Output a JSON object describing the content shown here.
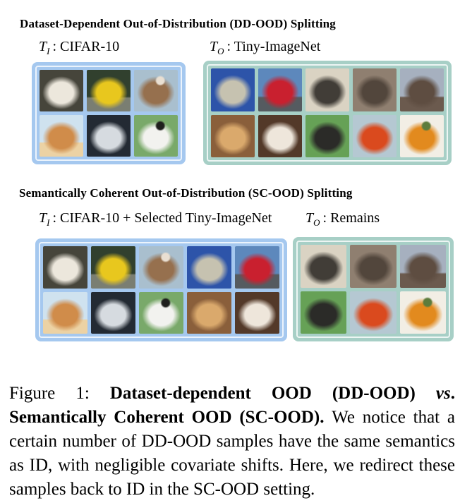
{
  "figure": {
    "colors": {
      "blue_box": "#a5c8ef",
      "green_box": "#a7cfc6",
      "inner_border": "#f2f7fb"
    },
    "sections": [
      {
        "id": "dd-ood",
        "title": "Dataset-Dependent Out-of-Distribution (DD-OOD) Splitting",
        "groups": [
          {
            "label": {
              "symbol": "T",
              "subscript": "I",
              "text": ": CIFAR-10"
            },
            "box_style": "blue",
            "columns": 3,
            "images": [
              "white-cat",
              "yellow-car",
              "brown-white-puppy",
              "orange-kitten",
              "airplane",
              "black-white-dog"
            ]
          },
          {
            "label": {
              "symbol": "T",
              "subscript": "O",
              "text": ": Tiny-ImageNet"
            },
            "box_style": "green",
            "columns": 5,
            "images": [
              "tabby-cat",
              "red-car",
              "high-heel-shoe",
              "bear",
              "bridge",
              "golden-retriever",
              "white-fluffy-dog",
              "boxing-bag",
              "goldfish",
              "orange-pepper"
            ]
          }
        ]
      },
      {
        "id": "sc-ood",
        "title": "Semantically Coherent Out-of-Distribution (SC-OOD) Splitting",
        "groups": [
          {
            "label": {
              "symbol": "T",
              "subscript": "I",
              "text": ": CIFAR-10 + Selected Tiny-ImageNet"
            },
            "box_style": "blue",
            "columns": 5,
            "images": [
              "white-cat",
              "yellow-car",
              "brown-white-puppy",
              "tabby-cat",
              "red-car",
              "orange-kitten",
              "airplane",
              "black-white-dog",
              "golden-retriever",
              "white-fluffy-dog"
            ]
          },
          {
            "label": {
              "symbol": "T",
              "subscript": "O",
              "text": ": Remains"
            },
            "box_style": "green",
            "columns": 3,
            "images": [
              "high-heel-shoe",
              "bear",
              "bridge",
              "boxing-bag",
              "goldfish",
              "orange-pepper"
            ]
          }
        ]
      }
    ],
    "image_palette": {
      "white-cat": {
        "bg": "#46453b",
        "fg": "#ece7dc"
      },
      "yellow-car": {
        "bg": "#31402e",
        "fg": "#e8c71e",
        "base": "#7a7e72"
      },
      "brown-white-puppy": {
        "bg": "#a9bfce",
        "fg": "#96704e",
        "accent": "#e9dfd2"
      },
      "orange-kitten": {
        "bg": "#cfe2ef",
        "fg": "#d08c4a",
        "base": "#ecd2a4"
      },
      "airplane": {
        "bg": "#232a33",
        "fg": "#d6dbe0"
      },
      "black-white-dog": {
        "bg": "#79a96a",
        "fg": "#f2f2ef",
        "accent": "#1f1f1d"
      },
      "tabby-cat": {
        "bg": "#2d54a9",
        "fg": "#c6c2b0"
      },
      "red-car": {
        "bg": "#5d88bc",
        "fg": "#c9202f",
        "base": "#555b60"
      },
      "high-heel-shoe": {
        "bg": "#dad3c3",
        "fg": "#413d37"
      },
      "bear": {
        "bg": "#8f7f70",
        "fg": "#52463c"
      },
      "bridge": {
        "bg": "#a6b0bf",
        "fg": "#5e4d41",
        "base": "#6b5a4e"
      },
      "golden-retriever": {
        "bg": "#8a5f3b",
        "fg": "#daa96c"
      },
      "white-fluffy-dog": {
        "bg": "#533929",
        "fg": "#eee6db"
      },
      "boxing-bag": {
        "bg": "#66a156",
        "fg": "#2b2b28"
      },
      "goldfish": {
        "bg": "#b5c8d2",
        "fg": "#da4a1e"
      },
      "orange-pepper": {
        "bg": "#f2eee5",
        "fg": "#e28a1e",
        "accent": "#5d7c3c"
      }
    },
    "caption": {
      "runs": [
        {
          "style": "r",
          "text": "Figure 1:  "
        },
        {
          "style": "b",
          "text": "Dataset-dependent OOD (DD-OOD) "
        },
        {
          "style": "bi",
          "text": "vs"
        },
        {
          "style": "b",
          "text": ". Semantically Coherent OOD (SC-OOD). "
        },
        {
          "style": "r",
          "text": "We notice that a certain number of DD-OOD samples have the same semantics as ID, with negligible covariate shifts. Here, we redirect these samples back to ID in the SC-OOD setting."
        }
      ]
    }
  }
}
